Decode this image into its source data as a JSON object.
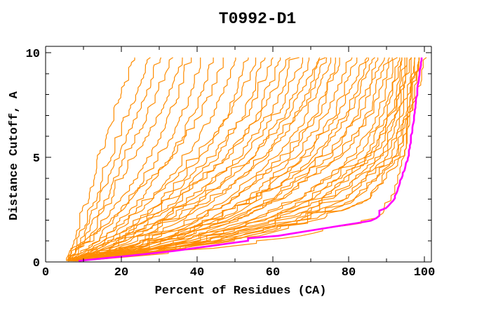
{
  "chart_data": {
    "type": "line",
    "title": "T0992-D1",
    "xlabel": "Percent of Residues (CA)",
    "ylabel": "Distance Cutoff, A",
    "xlim": [
      0,
      102
    ],
    "ylim": [
      0,
      10.3
    ],
    "grid": false,
    "legend": "none",
    "x_major_ticks": [
      0,
      20,
      40,
      60,
      80,
      100
    ],
    "x_tick_labels": [
      "0",
      "20",
      "40",
      "60",
      "80",
      "100"
    ],
    "x_minor_step": 10,
    "y_major_ticks": [
      0,
      5,
      10
    ],
    "y_tick_labels": [
      "0",
      "5",
      "10"
    ],
    "y_minor_step": 1,
    "colors": {
      "models": "#FF8C00",
      "highlight": "#FF00FF",
      "axis": "#000000"
    },
    "cutoff_knots": [
      0,
      0.5,
      1,
      2,
      3,
      5,
      7,
      9.7
    ],
    "highlight_percents": [
      6,
      33,
      53,
      87,
      92,
      95.8,
      97.3,
      99.3
    ],
    "model_percents": [
      [
        5.5,
        6.5,
        7.5,
        9,
        11,
        14,
        18,
        23
      ],
      [
        5.5,
        7,
        8.5,
        10.5,
        13,
        17,
        21.5,
        27
      ],
      [
        5.5,
        7.5,
        9,
        11.5,
        14,
        19,
        24,
        30
      ],
      [
        6,
        8,
        10,
        13,
        16,
        21,
        27,
        33
      ],
      [
        6,
        8.5,
        11,
        14,
        17.5,
        23.5,
        29.5,
        36
      ],
      [
        5.5,
        9,
        12,
        16,
        20,
        27,
        33,
        38
      ],
      [
        6,
        10,
        13.5,
        18,
        22,
        30,
        36,
        41
      ],
      [
        6,
        11,
        15,
        20,
        25,
        33,
        39,
        44
      ],
      [
        5.5,
        8,
        11,
        17,
        23,
        33,
        41,
        47
      ],
      [
        6,
        12,
        16,
        22,
        28,
        37,
        44,
        50
      ],
      [
        6,
        13,
        18,
        25,
        31,
        41,
        48,
        53
      ],
      [
        6,
        10,
        14,
        21,
        28,
        40,
        49,
        56
      ],
      [
        6,
        14,
        19,
        27,
        34,
        45,
        52,
        58
      ],
      [
        6,
        12,
        17,
        25,
        32,
        44,
        53,
        60
      ],
      [
        6,
        15,
        21,
        29,
        36,
        48,
        56,
        62
      ],
      [
        6,
        13,
        18,
        27,
        35,
        48,
        57,
        64
      ],
      [
        6,
        16,
        22,
        31,
        39,
        51,
        59,
        66
      ],
      [
        6,
        14,
        20,
        30,
        38,
        52,
        61,
        68
      ],
      [
        6,
        17,
        24,
        34,
        42,
        55,
        63,
        70
      ],
      [
        6,
        15,
        21,
        32,
        41,
        55,
        64,
        72
      ],
      [
        6,
        18,
        26,
        36,
        45,
        58,
        66,
        73
      ],
      [
        6,
        16,
        23,
        35,
        44,
        58,
        67,
        74
      ],
      [
        6,
        19,
        27,
        39,
        48,
        61,
        69,
        75
      ],
      [
        6,
        20,
        28,
        41,
        50,
        63,
        71,
        77
      ],
      [
        6,
        18,
        26,
        40,
        50,
        64,
        72,
        78
      ],
      [
        6,
        21,
        30,
        43,
        53,
        66,
        74,
        80
      ],
      [
        6,
        22,
        31,
        45,
        55,
        68,
        76,
        82
      ],
      [
        6,
        20,
        29,
        44,
        55,
        69,
        77,
        84
      ],
      [
        6,
        23,
        33,
        47,
        57,
        71,
        79,
        85
      ],
      [
        6,
        21,
        31,
        46,
        57,
        72,
        80,
        86
      ],
      [
        6,
        24,
        34,
        49,
        60,
        74,
        82,
        88
      ],
      [
        6,
        22,
        32,
        48,
        60,
        75,
        83,
        89
      ],
      [
        6,
        25,
        36,
        51,
        62,
        77,
        85,
        90
      ],
      [
        6,
        23,
        34,
        50,
        62,
        78,
        86,
        91
      ],
      [
        6,
        26,
        38,
        55,
        67,
        81,
        88,
        92
      ],
      [
        6,
        24,
        36,
        54,
        67,
        82,
        89,
        93
      ],
      [
        6,
        27,
        40,
        58,
        70,
        84,
        90,
        93.5
      ],
      [
        6,
        25,
        38,
        57,
        70,
        85,
        91,
        94
      ],
      [
        6,
        28,
        42,
        61,
        73,
        86,
        91.5,
        94.5
      ],
      [
        6,
        26,
        40,
        60,
        73,
        87,
        92,
        95
      ],
      [
        6,
        29,
        44,
        64,
        76,
        88,
        92.5,
        95.5
      ],
      [
        6,
        27,
        42,
        63,
        76,
        89,
        93,
        96
      ],
      [
        6,
        30,
        46,
        67,
        79,
        90,
        94,
        96.5
      ],
      [
        6,
        28,
        44,
        66,
        79,
        91,
        94.5,
        97
      ],
      [
        6,
        31,
        48,
        70,
        82,
        92,
        95,
        97.5
      ],
      [
        6,
        29,
        46,
        69,
        82,
        92.5,
        95.5,
        98
      ],
      [
        6,
        32,
        50,
        73,
        85,
        93,
        96,
        98.5
      ],
      [
        6,
        30,
        48,
        72,
        85,
        94,
        96.5,
        99.8
      ],
      [
        6,
        38,
        60,
        87,
        91,
        94,
        96,
        98
      ]
    ]
  }
}
